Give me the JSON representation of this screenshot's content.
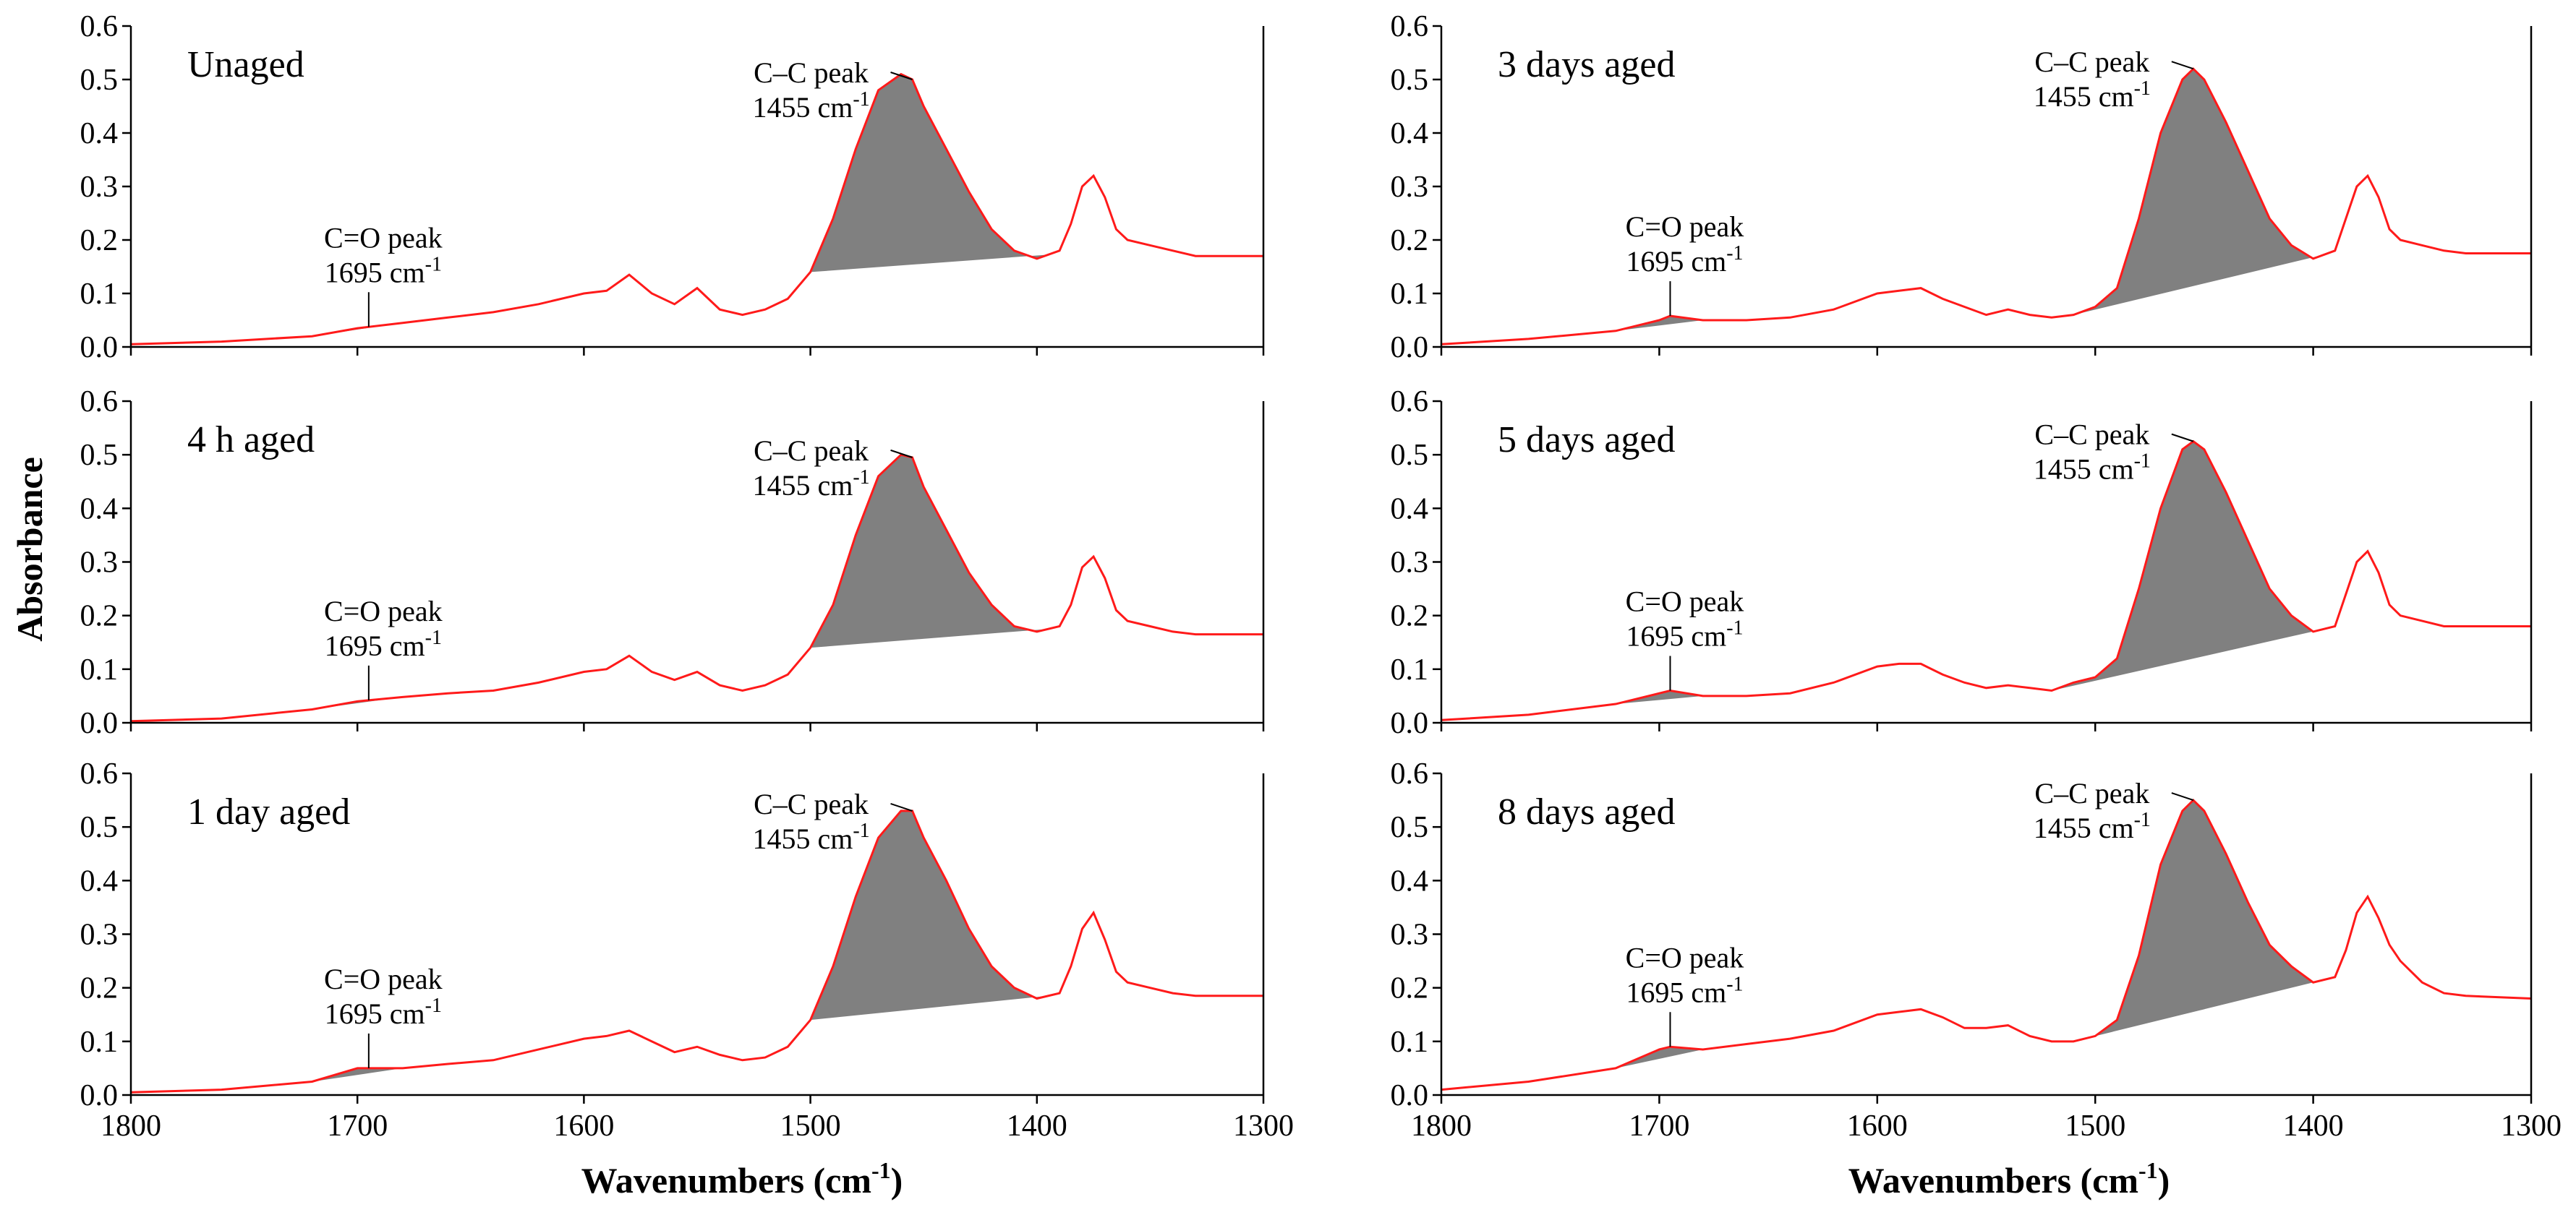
{
  "figure": {
    "y_axis_title": "Absorbance",
    "x_axis_title_left": "Wavenumbers (cm",
    "x_axis_title_right": "Wavenumbers (cm",
    "x_axis_title_sup": "-1",
    "x_axis_title_close": ")"
  },
  "chart_data": [
    {
      "type": "line",
      "panel": "Unaged",
      "series": "absorbance",
      "x": [
        1800,
        1760,
        1720,
        1700,
        1680,
        1660,
        1640,
        1620,
        1600,
        1590,
        1580,
        1570,
        1560,
        1550,
        1540,
        1530,
        1520,
        1510,
        1500,
        1490,
        1480,
        1470,
        1460,
        1455,
        1450,
        1440,
        1430,
        1420,
        1410,
        1400,
        1390,
        1385,
        1380,
        1375,
        1370,
        1365,
        1360,
        1350,
        1340,
        1330,
        1300
      ],
      "y": [
        0.005,
        0.01,
        0.02,
        0.035,
        0.045,
        0.055,
        0.065,
        0.08,
        0.1,
        0.105,
        0.135,
        0.1,
        0.08,
        0.11,
        0.07,
        0.06,
        0.07,
        0.09,
        0.14,
        0.24,
        0.37,
        0.48,
        0.51,
        0.5,
        0.45,
        0.37,
        0.29,
        0.22,
        0.18,
        0.165,
        0.18,
        0.23,
        0.3,
        0.32,
        0.28,
        0.22,
        0.2,
        0.19,
        0.18,
        0.17,
        0.17
      ],
      "xlim": [
        1800,
        1300
      ],
      "ylim": [
        0,
        0.6
      ],
      "xticks": [
        1800,
        1700,
        1600,
        1500,
        1400,
        1300
      ],
      "yticks": [
        "0.0",
        "0.1",
        "0.2",
        "0.3",
        "0.4",
        "0.5",
        "0.6"
      ],
      "shaded": [
        {
          "peak": "C=O",
          "from": 1720,
          "to": 1680
        },
        {
          "peak": "C-C",
          "from": 1500,
          "to": 1395
        }
      ],
      "cc_annotation": [
        "C–C peak",
        "1455 cm",
        "-1"
      ],
      "co_annotation": [
        "C=O peak",
        "1695 cm",
        "-1"
      ]
    },
    {
      "type": "line",
      "panel": "4 h aged",
      "series": "absorbance",
      "x": [
        1800,
        1760,
        1720,
        1700,
        1680,
        1660,
        1640,
        1620,
        1600,
        1590,
        1580,
        1570,
        1560,
        1550,
        1540,
        1530,
        1520,
        1510,
        1500,
        1490,
        1480,
        1470,
        1460,
        1455,
        1450,
        1440,
        1430,
        1420,
        1410,
        1400,
        1390,
        1385,
        1380,
        1375,
        1370,
        1365,
        1360,
        1350,
        1340,
        1330,
        1300
      ],
      "y": [
        0.003,
        0.008,
        0.025,
        0.04,
        0.048,
        0.055,
        0.06,
        0.075,
        0.095,
        0.1,
        0.125,
        0.095,
        0.08,
        0.095,
        0.07,
        0.06,
        0.07,
        0.09,
        0.14,
        0.22,
        0.35,
        0.46,
        0.5,
        0.495,
        0.44,
        0.36,
        0.28,
        0.22,
        0.18,
        0.17,
        0.18,
        0.22,
        0.29,
        0.31,
        0.27,
        0.21,
        0.19,
        0.18,
        0.17,
        0.165,
        0.165
      ],
      "xlim": [
        1800,
        1300
      ],
      "ylim": [
        0,
        0.6
      ],
      "xticks": [
        1800,
        1700,
        1600,
        1500,
        1400,
        1300
      ],
      "yticks": [
        "0.0",
        "0.1",
        "0.2",
        "0.3",
        "0.4",
        "0.5",
        "0.6"
      ],
      "shaded": [
        {
          "peak": "C=O",
          "from": 1720,
          "to": 1680
        },
        {
          "peak": "C-C",
          "from": 1500,
          "to": 1395
        }
      ],
      "cc_annotation": [
        "C–C peak",
        "1455 cm",
        "-1"
      ],
      "co_annotation": [
        "C=O peak",
        "1695 cm",
        "-1"
      ]
    },
    {
      "type": "line",
      "panel": "1 day aged",
      "series": "absorbance",
      "x": [
        1800,
        1760,
        1720,
        1700,
        1680,
        1660,
        1640,
        1620,
        1600,
        1590,
        1580,
        1570,
        1560,
        1550,
        1540,
        1530,
        1520,
        1510,
        1500,
        1490,
        1480,
        1470,
        1460,
        1455,
        1450,
        1440,
        1430,
        1420,
        1410,
        1400,
        1390,
        1385,
        1380,
        1375,
        1370,
        1365,
        1360,
        1350,
        1340,
        1330,
        1300
      ],
      "y": [
        0.005,
        0.01,
        0.025,
        0.05,
        0.05,
        0.058,
        0.065,
        0.085,
        0.105,
        0.11,
        0.12,
        0.1,
        0.08,
        0.09,
        0.075,
        0.065,
        0.07,
        0.09,
        0.14,
        0.24,
        0.37,
        0.48,
        0.53,
        0.53,
        0.48,
        0.4,
        0.31,
        0.24,
        0.2,
        0.18,
        0.19,
        0.24,
        0.31,
        0.34,
        0.29,
        0.23,
        0.21,
        0.2,
        0.19,
        0.185,
        0.185
      ],
      "xlim": [
        1800,
        1300
      ],
      "ylim": [
        0,
        0.6
      ],
      "xticks": [
        1800,
        1700,
        1600,
        1500,
        1400,
        1300
      ],
      "yticks": [
        "0.0",
        "0.1",
        "0.2",
        "0.3",
        "0.4",
        "0.5",
        "0.6"
      ],
      "shaded": [
        {
          "peak": "C=O",
          "from": 1720,
          "to": 1680
        },
        {
          "peak": "C-C",
          "from": 1500,
          "to": 1395
        }
      ],
      "cc_annotation": [
        "C–C peak",
        "1455 cm",
        "-1"
      ],
      "co_annotation": [
        "C=O peak",
        "1695 cm",
        "-1"
      ]
    },
    {
      "type": "line",
      "panel": "3 days aged",
      "series": "absorbance",
      "x": [
        1800,
        1760,
        1720,
        1700,
        1695,
        1680,
        1660,
        1640,
        1620,
        1600,
        1590,
        1580,
        1570,
        1560,
        1550,
        1540,
        1530,
        1520,
        1510,
        1500,
        1490,
        1480,
        1470,
        1460,
        1455,
        1450,
        1440,
        1430,
        1420,
        1410,
        1400,
        1390,
        1385,
        1380,
        1375,
        1370,
        1365,
        1360,
        1350,
        1340,
        1330,
        1300
      ],
      "y": [
        0.005,
        0.015,
        0.03,
        0.05,
        0.058,
        0.05,
        0.05,
        0.055,
        0.07,
        0.1,
        0.105,
        0.11,
        0.09,
        0.075,
        0.06,
        0.07,
        0.06,
        0.055,
        0.06,
        0.075,
        0.11,
        0.24,
        0.4,
        0.5,
        0.52,
        0.5,
        0.42,
        0.33,
        0.24,
        0.19,
        0.165,
        0.18,
        0.24,
        0.3,
        0.32,
        0.28,
        0.22,
        0.2,
        0.19,
        0.18,
        0.175,
        0.175
      ],
      "xlim": [
        1800,
        1300
      ],
      "ylim": [
        0,
        0.6
      ],
      "xticks": [
        1800,
        1700,
        1600,
        1500,
        1400,
        1300
      ],
      "yticks": [
        "0.0",
        "0.1",
        "0.2",
        "0.3",
        "0.4",
        "0.5",
        "0.6"
      ],
      "shaded": [
        {
          "peak": "C=O",
          "from": 1720,
          "to": 1680
        },
        {
          "peak": "C-C",
          "from": 1510,
          "to": 1395
        }
      ],
      "cc_annotation": [
        "C–C peak",
        "1455 cm",
        "-1"
      ],
      "co_annotation": [
        "C=O peak",
        "1695 cm",
        "-1"
      ]
    },
    {
      "type": "line",
      "panel": "5 days aged",
      "series": "absorbance",
      "x": [
        1800,
        1760,
        1720,
        1700,
        1695,
        1680,
        1660,
        1640,
        1620,
        1600,
        1590,
        1580,
        1570,
        1560,
        1550,
        1540,
        1530,
        1520,
        1510,
        1500,
        1490,
        1480,
        1470,
        1460,
        1455,
        1450,
        1440,
        1430,
        1420,
        1410,
        1400,
        1390,
        1385,
        1380,
        1375,
        1370,
        1365,
        1360,
        1350,
        1340,
        1330,
        1300
      ],
      "y": [
        0.005,
        0.015,
        0.035,
        0.055,
        0.06,
        0.05,
        0.05,
        0.055,
        0.075,
        0.105,
        0.11,
        0.11,
        0.09,
        0.075,
        0.065,
        0.07,
        0.065,
        0.06,
        0.075,
        0.085,
        0.12,
        0.25,
        0.4,
        0.51,
        0.525,
        0.51,
        0.43,
        0.34,
        0.25,
        0.2,
        0.17,
        0.18,
        0.24,
        0.3,
        0.32,
        0.28,
        0.22,
        0.2,
        0.19,
        0.18,
        0.18,
        0.18
      ],
      "xlim": [
        1800,
        1300
      ],
      "ylim": [
        0,
        0.6
      ],
      "xticks": [
        1800,
        1700,
        1600,
        1500,
        1400,
        1300
      ],
      "yticks": [
        "0.0",
        "0.1",
        "0.2",
        "0.3",
        "0.4",
        "0.5",
        "0.6"
      ],
      "shaded": [
        {
          "peak": "C=O",
          "from": 1720,
          "to": 1680
        },
        {
          "peak": "C-C",
          "from": 1520,
          "to": 1395
        }
      ],
      "cc_annotation": [
        "C–C peak",
        "1455 cm",
        "-1"
      ],
      "co_annotation": [
        "C=O peak",
        "1695 cm",
        "-1"
      ]
    },
    {
      "type": "line",
      "panel": "8 days aged",
      "series": "absorbance",
      "x": [
        1800,
        1760,
        1720,
        1700,
        1695,
        1680,
        1660,
        1640,
        1620,
        1600,
        1590,
        1580,
        1570,
        1560,
        1550,
        1540,
        1530,
        1520,
        1510,
        1500,
        1490,
        1480,
        1470,
        1460,
        1455,
        1450,
        1440,
        1430,
        1420,
        1410,
        1400,
        1390,
        1385,
        1380,
        1375,
        1370,
        1365,
        1360,
        1350,
        1340,
        1330,
        1300
      ],
      "y": [
        0.01,
        0.025,
        0.05,
        0.085,
        0.09,
        0.085,
        0.095,
        0.105,
        0.12,
        0.15,
        0.155,
        0.16,
        0.145,
        0.125,
        0.125,
        0.13,
        0.11,
        0.1,
        0.1,
        0.11,
        0.14,
        0.26,
        0.43,
        0.53,
        0.55,
        0.53,
        0.45,
        0.36,
        0.28,
        0.24,
        0.21,
        0.22,
        0.27,
        0.34,
        0.37,
        0.33,
        0.28,
        0.25,
        0.21,
        0.19,
        0.185,
        0.18
      ],
      "xlim": [
        1800,
        1300
      ],
      "ylim": [
        0,
        0.6
      ],
      "xticks": [
        1800,
        1700,
        1600,
        1500,
        1400,
        1300
      ],
      "yticks": [
        "0.0",
        "0.1",
        "0.2",
        "0.3",
        "0.4",
        "0.5",
        "0.6"
      ],
      "shaded": [
        {
          "peak": "C=O",
          "from": 1720,
          "to": 1680
        },
        {
          "peak": "C-C",
          "from": 1510,
          "to": 1395
        }
      ],
      "cc_annotation": [
        "C–C peak",
        "1455 cm",
        "-1"
      ],
      "co_annotation": [
        "C=O peak",
        "1695 cm",
        "-1"
      ]
    }
  ]
}
